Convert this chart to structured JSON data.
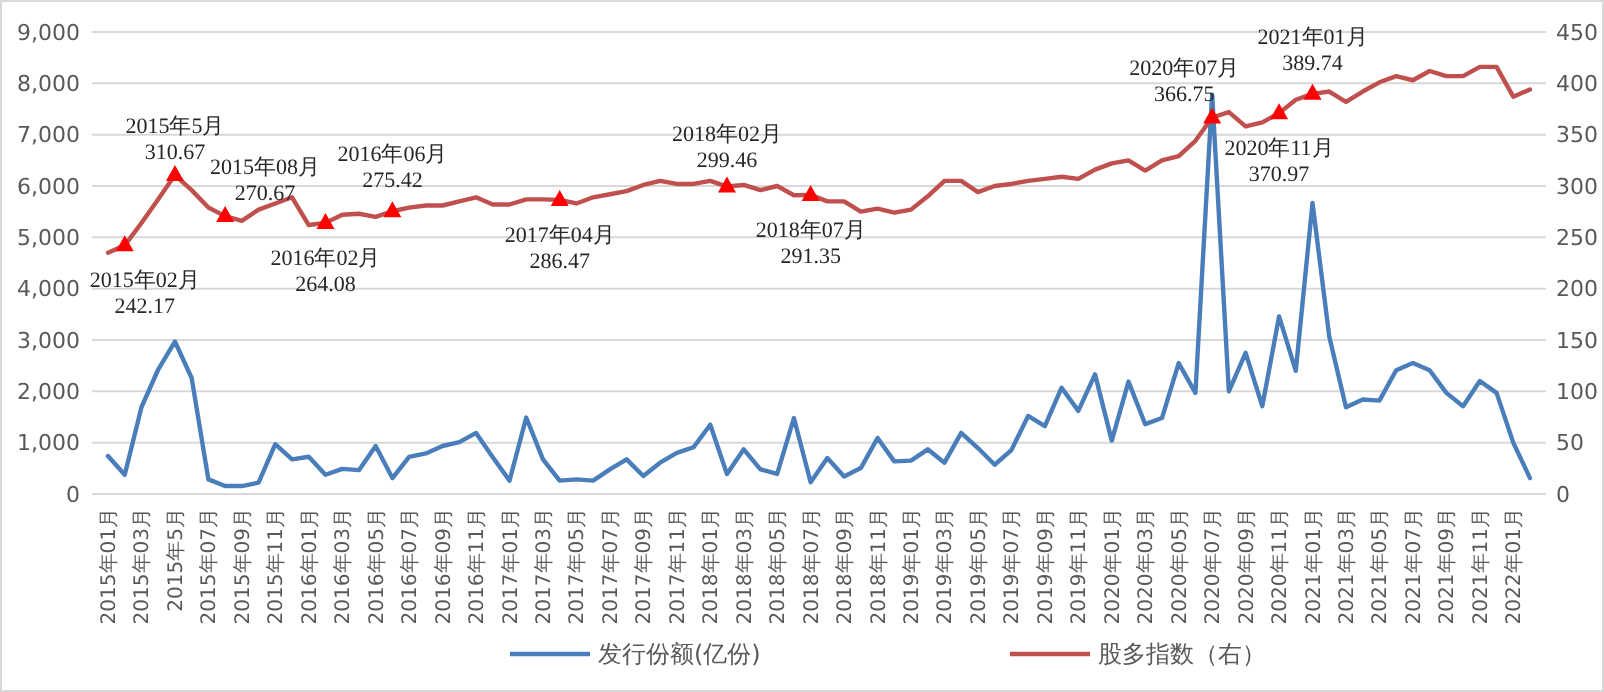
{
  "chart_data": {
    "type": "line",
    "categories": [
      "2015年01月",
      null,
      "2015年03月",
      null,
      "2015年5月",
      null,
      "2015年07月",
      null,
      "2015年09月",
      null,
      "2015年11月",
      null,
      "2016年01月",
      null,
      "2016年03月",
      null,
      "2016年05月",
      null,
      "2016年07月",
      null,
      "2016年09月",
      null,
      "2016年11月",
      null,
      "2017年01月",
      null,
      "2017年03月",
      null,
      "2017年05月",
      null,
      "2017年07月",
      null,
      "2017年09月",
      null,
      "2017年11月",
      null,
      "2018年01月",
      null,
      "2018年03月",
      null,
      "2018年05月",
      null,
      "2018年07月",
      null,
      "2018年09月",
      null,
      "2018年11月",
      null,
      "2019年01月",
      null,
      "2019年03月",
      null,
      "2019年05月",
      null,
      "2019年07月",
      null,
      "2019年09月",
      null,
      "2019年11月",
      null,
      "2020年01月",
      null,
      "2020年03月",
      null,
      "2020年05月",
      null,
      "2020年07月",
      null,
      "2020年09月",
      null,
      "2020年11月",
      null,
      "2021年01月",
      null,
      "2021年03月",
      null,
      "2021年05月",
      null,
      "2021年07月",
      null,
      "2021年09月",
      null,
      "2021年11月",
      null,
      "2022年01月",
      null
    ],
    "series": [
      {
        "name": "发行份额(亿份)",
        "color": "#4a7ebb",
        "marker": "none",
        "values": [
          740,
          375,
          1690,
          2425,
          2970,
          2260,
          285,
          155,
          155,
          220,
          970,
          675,
          725,
          375,
          490,
          465,
          935,
          310,
          725,
          790,
          935,
          1010,
          1190,
          715,
          260,
          1490,
          675,
          260,
          285,
          260,
          480,
          675,
          350,
          610,
          800,
          910,
          1350,
          390,
          870,
          480,
          390,
          1480,
          230,
          700,
          340,
          505,
          1090,
          635,
          650,
          870,
          610,
          1190,
          895,
          570,
          855,
          1520,
          1320,
          2070,
          1620,
          2330,
          1040,
          2190,
          1360,
          1480,
          2550,
          1970,
          7780,
          2000,
          2750,
          1710,
          3460,
          2400,
          5670,
          3070,
          1690,
          1840,
          1820,
          2410,
          2550,
          2410,
          1970,
          1710,
          2200,
          1970,
          1000,
          310
        ]
      },
      {
        "name": "股多指数（右）",
        "color": "#c0504d",
        "axis": "y2",
        "marker": "none",
        "values": [
          235,
          242.17,
          264,
          287,
          310.67,
          296,
          279,
          270.67,
          266,
          277,
          283,
          289,
          262,
          264.08,
          272,
          273,
          270,
          275.42,
          279,
          281,
          281,
          285,
          289,
          282,
          282,
          287,
          287,
          286.47,
          283,
          289,
          292,
          295,
          301,
          305,
          302,
          302,
          305,
          299.46,
          301,
          296,
          300,
          291,
          291.35,
          285,
          285,
          275,
          278,
          274,
          277,
          290,
          305,
          305,
          294,
          300,
          302,
          305,
          307,
          309,
          307,
          316,
          322,
          325,
          315,
          325,
          329,
          344,
          366.75,
          372,
          358,
          362,
          370.97,
          384,
          389.74,
          392,
          382,
          392,
          401,
          407,
          403,
          412,
          407,
          407,
          416,
          416,
          387,
          394
        ]
      },
      {
        "type": "scatter",
        "color": "#ff0000",
        "axis": "y2",
        "marker": "triangle",
        "values": [
          null,
          242.17,
          null,
          null,
          310.67,
          null,
          null,
          270.67,
          null,
          null,
          null,
          null,
          null,
          264.08,
          null,
          null,
          null,
          275.42,
          null,
          null,
          null,
          null,
          null,
          null,
          null,
          null,
          null,
          286.47,
          null,
          null,
          null,
          null,
          null,
          null,
          null,
          null,
          null,
          299.46,
          null,
          null,
          null,
          null,
          291.35,
          null,
          null,
          null,
          null,
          null,
          null,
          null,
          null,
          null,
          null,
          null,
          null,
          null,
          null,
          null,
          null,
          null,
          null,
          null,
          null,
          null,
          null,
          null,
          366.75,
          null,
          null,
          null,
          370.97,
          null,
          389.74,
          null,
          null,
          null,
          null,
          null,
          null,
          null,
          null,
          null,
          null,
          null,
          null,
          null
        ]
      }
    ],
    "annotations": [
      "2015年02月\n242.17",
      "2015年5月\n310.67",
      "2015年08月\n270.67",
      "2016年02月\n264.08",
      "2016年06月\n275.42",
      "2017年04月\n286.47",
      "2018年02月\n299.46",
      "2018年07月\n291.35",
      "2020年07月\n366.75",
      "2020年11月\n370.97",
      "2021年01月\n389.74"
    ],
    "ylim": [
      0,
      9000
    ],
    "yticks": [
      0,
      {
        "value": 1000,
        "label": "1,000"
      },
      {
        "value": 2000,
        "label": "2,000"
      },
      {
        "value": 3000,
        "label": "3,000"
      },
      {
        "value": 4000,
        "label": "4,000"
      },
      {
        "value": 5000,
        "label": "5,000"
      },
      {
        "value": 6000,
        "label": "6,000"
      },
      {
        "value": 7000,
        "label": "7,000"
      },
      {
        "value": 8000,
        "label": "8,000"
      },
      {
        "value": 9000,
        "label": "9,000"
      }
    ],
    "y2lim": [
      0,
      450
    ],
    "y2ticks": [
      0,
      50,
      100,
      150,
      200,
      250,
      300,
      350,
      400,
      450
    ],
    "grid": "y",
    "legend": "bottom"
  }
}
